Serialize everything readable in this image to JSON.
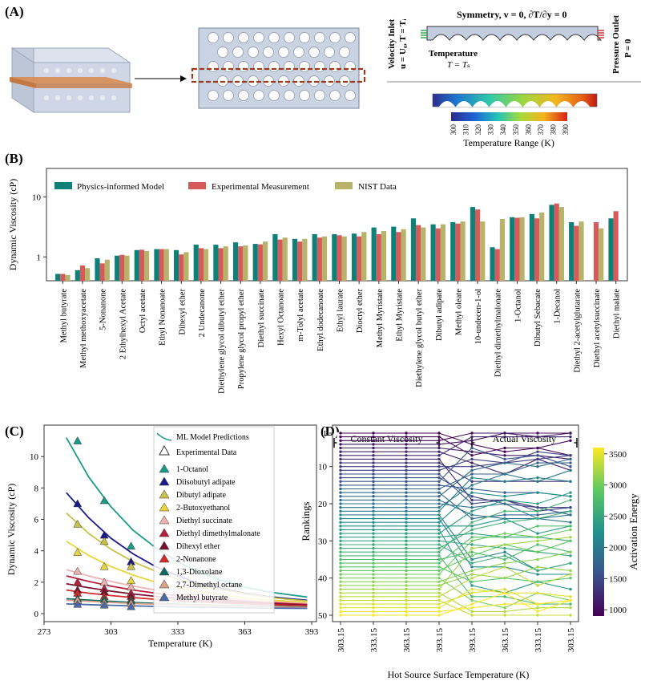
{
  "panel_a": {
    "label": "(A)",
    "velocity_inlet": "Velocity Inlet",
    "velocity_eq": "u = U₀, T = Tᵢ",
    "symmetry": "Symmetry, v = 0, ∂T/∂y = 0",
    "temperature": "Temperature",
    "temperature_eq": "T = Tₛ",
    "pressure_outlet": "Pressure Outlet",
    "pressure_eq": "P = 0",
    "colorbar_ticks": [
      "300",
      "310",
      "320",
      "330",
      "340",
      "350",
      "360",
      "370",
      "380",
      "390"
    ],
    "colorbar_label": "Temperature Range (K)",
    "colors": {
      "device_body": "#c9d3e2",
      "channel_band": "#d9874a",
      "dashed": "#9c3a1f"
    }
  },
  "chart_data": [
    {
      "panel": "(B)",
      "type": "bar",
      "title": "",
      "xlabel": "",
      "ylabel": "Dynamic Viscosity (cP)",
      "yscale": "log",
      "ylim": [
        0.4,
        30
      ],
      "yticks": [
        1,
        10
      ],
      "ytick_labels": [
        "1",
        "10"
      ],
      "legend_position": "top-left",
      "categories": [
        "Methyl butyrate",
        "Methyl methoxyacetate",
        "5-Nonanone",
        "2 Ethylhexyl Acetate",
        "Octyl acetate",
        "Ethyl Nonanoate",
        "Dihexyl ether",
        "2 Undecanone",
        "Diethylene glycol dibutyl ether",
        "Propylene glycol propyl ether",
        "Diethyl succinate",
        "Hexyl Octanoate",
        "m-Tolyl acetate",
        "Ethyl dodecanoate",
        "Ethyl laurate",
        "Dioctyl ether",
        "Methyl Myristate",
        "Ethyl Myristate",
        "Diethylene glycol butyl ether",
        "Dibutyl adipate",
        "Methyl oleate",
        "10-undecen-1-ol",
        "Diethyl dimethylmalonate",
        "1-Octanol",
        "Dibutyl Sebacate",
        "1-Decanol",
        "Diethyl 2-acetylglutarate",
        "Diethyl acetylsuccinate",
        "Diethyl malate"
      ],
      "series": [
        {
          "name": "Physics-informed Model",
          "color": "#0f8078",
          "values": [
            0.52,
            0.6,
            0.95,
            1.05,
            1.3,
            1.35,
            1.3,
            1.6,
            1.6,
            1.75,
            1.65,
            2.4,
            2.0,
            2.4,
            2.4,
            2.45,
            3.1,
            3.2,
            4.4,
            3.5,
            3.8,
            6.8,
            1.45,
            4.6,
            5.2,
            7.4,
            3.8,
            null,
            4.4
          ]
        },
        {
          "name": "Experimental Measurement",
          "color": "#d65a5a",
          "values": [
            0.52,
            0.72,
            0.78,
            1.08,
            1.32,
            1.35,
            1.1,
            1.4,
            1.4,
            1.5,
            1.62,
            1.95,
            1.8,
            2.1,
            2.3,
            2.2,
            2.4,
            2.6,
            3.4,
            3.0,
            3.6,
            6.2,
            1.35,
            4.5,
            4.4,
            7.8,
            3.3,
            3.8,
            5.8
          ]
        },
        {
          "name": "NIST Data",
          "color": "#b7b36a",
          "values": [
            0.5,
            0.65,
            0.9,
            1.05,
            1.25,
            1.35,
            1.2,
            1.35,
            1.5,
            1.55,
            1.8,
            2.1,
            2.0,
            2.2,
            2.2,
            2.6,
            2.7,
            2.9,
            3.1,
            3.5,
            3.9,
            3.9,
            4.3,
            4.6,
            5.5,
            6.8,
            3.9,
            3.0,
            null
          ]
        }
      ]
    },
    {
      "panel": "(C)",
      "type": "line",
      "title": "",
      "xlabel": "Temperature (K)",
      "ylabel": "Dynamic Viscosity (cP)",
      "xlim": [
        273,
        393
      ],
      "ylim": [
        0,
        12
      ],
      "xticks": [
        273,
        303,
        333,
        363,
        393
      ],
      "yticks": [
        0,
        2,
        4,
        6,
        8,
        10
      ],
      "legend_position": "top-right",
      "legend_model": "ML Model Predictions",
      "legend_experimental": "Experimental Data",
      "x": [
        283,
        293,
        303,
        313,
        323,
        333,
        343,
        353,
        363,
        373,
        383,
        391
      ],
      "experimental_x": [
        288,
        300,
        312
      ],
      "series": [
        {
          "name": "1-Octanol",
          "color": "#1a9a8a",
          "curve": [
            11.2,
            8.7,
            6.8,
            5.3,
            4.2,
            3.3,
            2.6,
            2.1,
            1.7,
            1.4,
            1.2,
            1.05
          ],
          "experimental": [
            11.0,
            7.2,
            4.3
          ]
        },
        {
          "name": "Diisobutyl adipate",
          "color": "#1a1a8c",
          "curve": [
            7.7,
            6.1,
            4.8,
            3.8,
            3.0,
            2.4,
            1.9,
            1.6,
            1.3,
            1.1,
            0.95,
            0.85
          ],
          "experimental": [
            7.0,
            5.0,
            3.3
          ]
        },
        {
          "name": "Dibutyl adipate",
          "color": "#c9c24a",
          "curve": [
            6.4,
            5.1,
            4.1,
            3.3,
            2.7,
            2.2,
            1.8,
            1.5,
            1.25,
            1.05,
            0.9,
            0.8
          ],
          "experimental": [
            5.7,
            4.6,
            3.0
          ]
        },
        {
          "name": "2-Butoxyethanol",
          "color": "#e8d53a",
          "curve": [
            4.6,
            3.7,
            3.0,
            2.45,
            2.0,
            1.65,
            1.4,
            1.2,
            1.0,
            0.88,
            0.78,
            0.7
          ],
          "experimental": [
            3.9,
            3.0,
            2.1
          ]
        },
        {
          "name": "Diethyl succinate",
          "color": "#f0b3b3",
          "curve": [
            2.8,
            2.4,
            2.05,
            1.75,
            1.5,
            1.3,
            1.13,
            1.0,
            0.88,
            0.78,
            0.7,
            0.65
          ],
          "experimental": [
            2.7,
            2.0,
            1.7
          ]
        },
        {
          "name": "Diethyl dimethylmalonate",
          "color": "#b81f3c",
          "curve": [
            2.4,
            2.05,
            1.75,
            1.5,
            1.3,
            1.13,
            1.0,
            0.88,
            0.78,
            0.7,
            0.63,
            0.58
          ],
          "experimental": [
            2.0,
            1.6,
            1.3
          ]
        },
        {
          "name": "Dihexyl ether",
          "color": "#7a1030",
          "curve": [
            1.9,
            1.65,
            1.43,
            1.25,
            1.1,
            0.97,
            0.86,
            0.77,
            0.7,
            0.63,
            0.58,
            0.54
          ],
          "experimental": [
            1.5,
            1.4,
            1.1
          ]
        },
        {
          "name": "2-Nonanone",
          "color": "#d42a2a",
          "curve": [
            1.5,
            1.3,
            1.15,
            1.02,
            0.91,
            0.82,
            0.74,
            0.67,
            0.62,
            0.57,
            0.53,
            0.5
          ],
          "experimental": [
            1.3,
            1.1,
            0.9
          ]
        },
        {
          "name": "1,3-Dioxolane",
          "color": "#0f6b5e",
          "curve": [
            0.95,
            0.86,
            0.78,
            0.71,
            0.65,
            0.6,
            0.56,
            0.52,
            0.49,
            0.46,
            0.44,
            0.42
          ],
          "experimental": [
            0.95,
            0.9,
            0.8
          ]
        },
        {
          "name": "2,7-Dimethyl octane",
          "color": "#d9a38a",
          "curve": [
            0.85,
            0.78,
            0.71,
            0.65,
            0.6,
            0.56,
            0.52,
            0.49,
            0.46,
            0.43,
            0.41,
            0.39
          ],
          "experimental": [
            0.85,
            0.7,
            0.65
          ]
        },
        {
          "name": "Methyl butyrate",
          "color": "#4a6aa8",
          "curve": [
            0.62,
            0.57,
            0.53,
            0.49,
            0.46,
            0.43,
            0.41,
            0.39,
            0.37,
            0.35,
            0.34,
            0.33
          ],
          "experimental": [
            0.6,
            0.55,
            0.45
          ]
        }
      ]
    },
    {
      "panel": "(D)",
      "type": "line",
      "title": "",
      "xlabel": "Hot Source Surface Temperature (K)",
      "ylabel": "Rankings",
      "xtick_labels": [
        "303.15",
        "333.15",
        "363.15",
        "393.15",
        "393.15",
        "363.15",
        "333.15",
        "303.15"
      ],
      "yticks": [
        1,
        10,
        20,
        30,
        40,
        50
      ],
      "ylim": [
        51,
        0
      ],
      "group_labels": [
        "Constant Viscosity",
        "Actual Viscosity"
      ],
      "colorbar_label": "Activation Energy",
      "colorbar_range": [
        900,
        3600
      ],
      "colorbar_ticks": [
        1000,
        1500,
        2000,
        2500,
        3000,
        3500
      ],
      "items": 50
    }
  ],
  "panel_labels": {
    "b": "(B)",
    "c": "(C)",
    "d": "(D)"
  }
}
